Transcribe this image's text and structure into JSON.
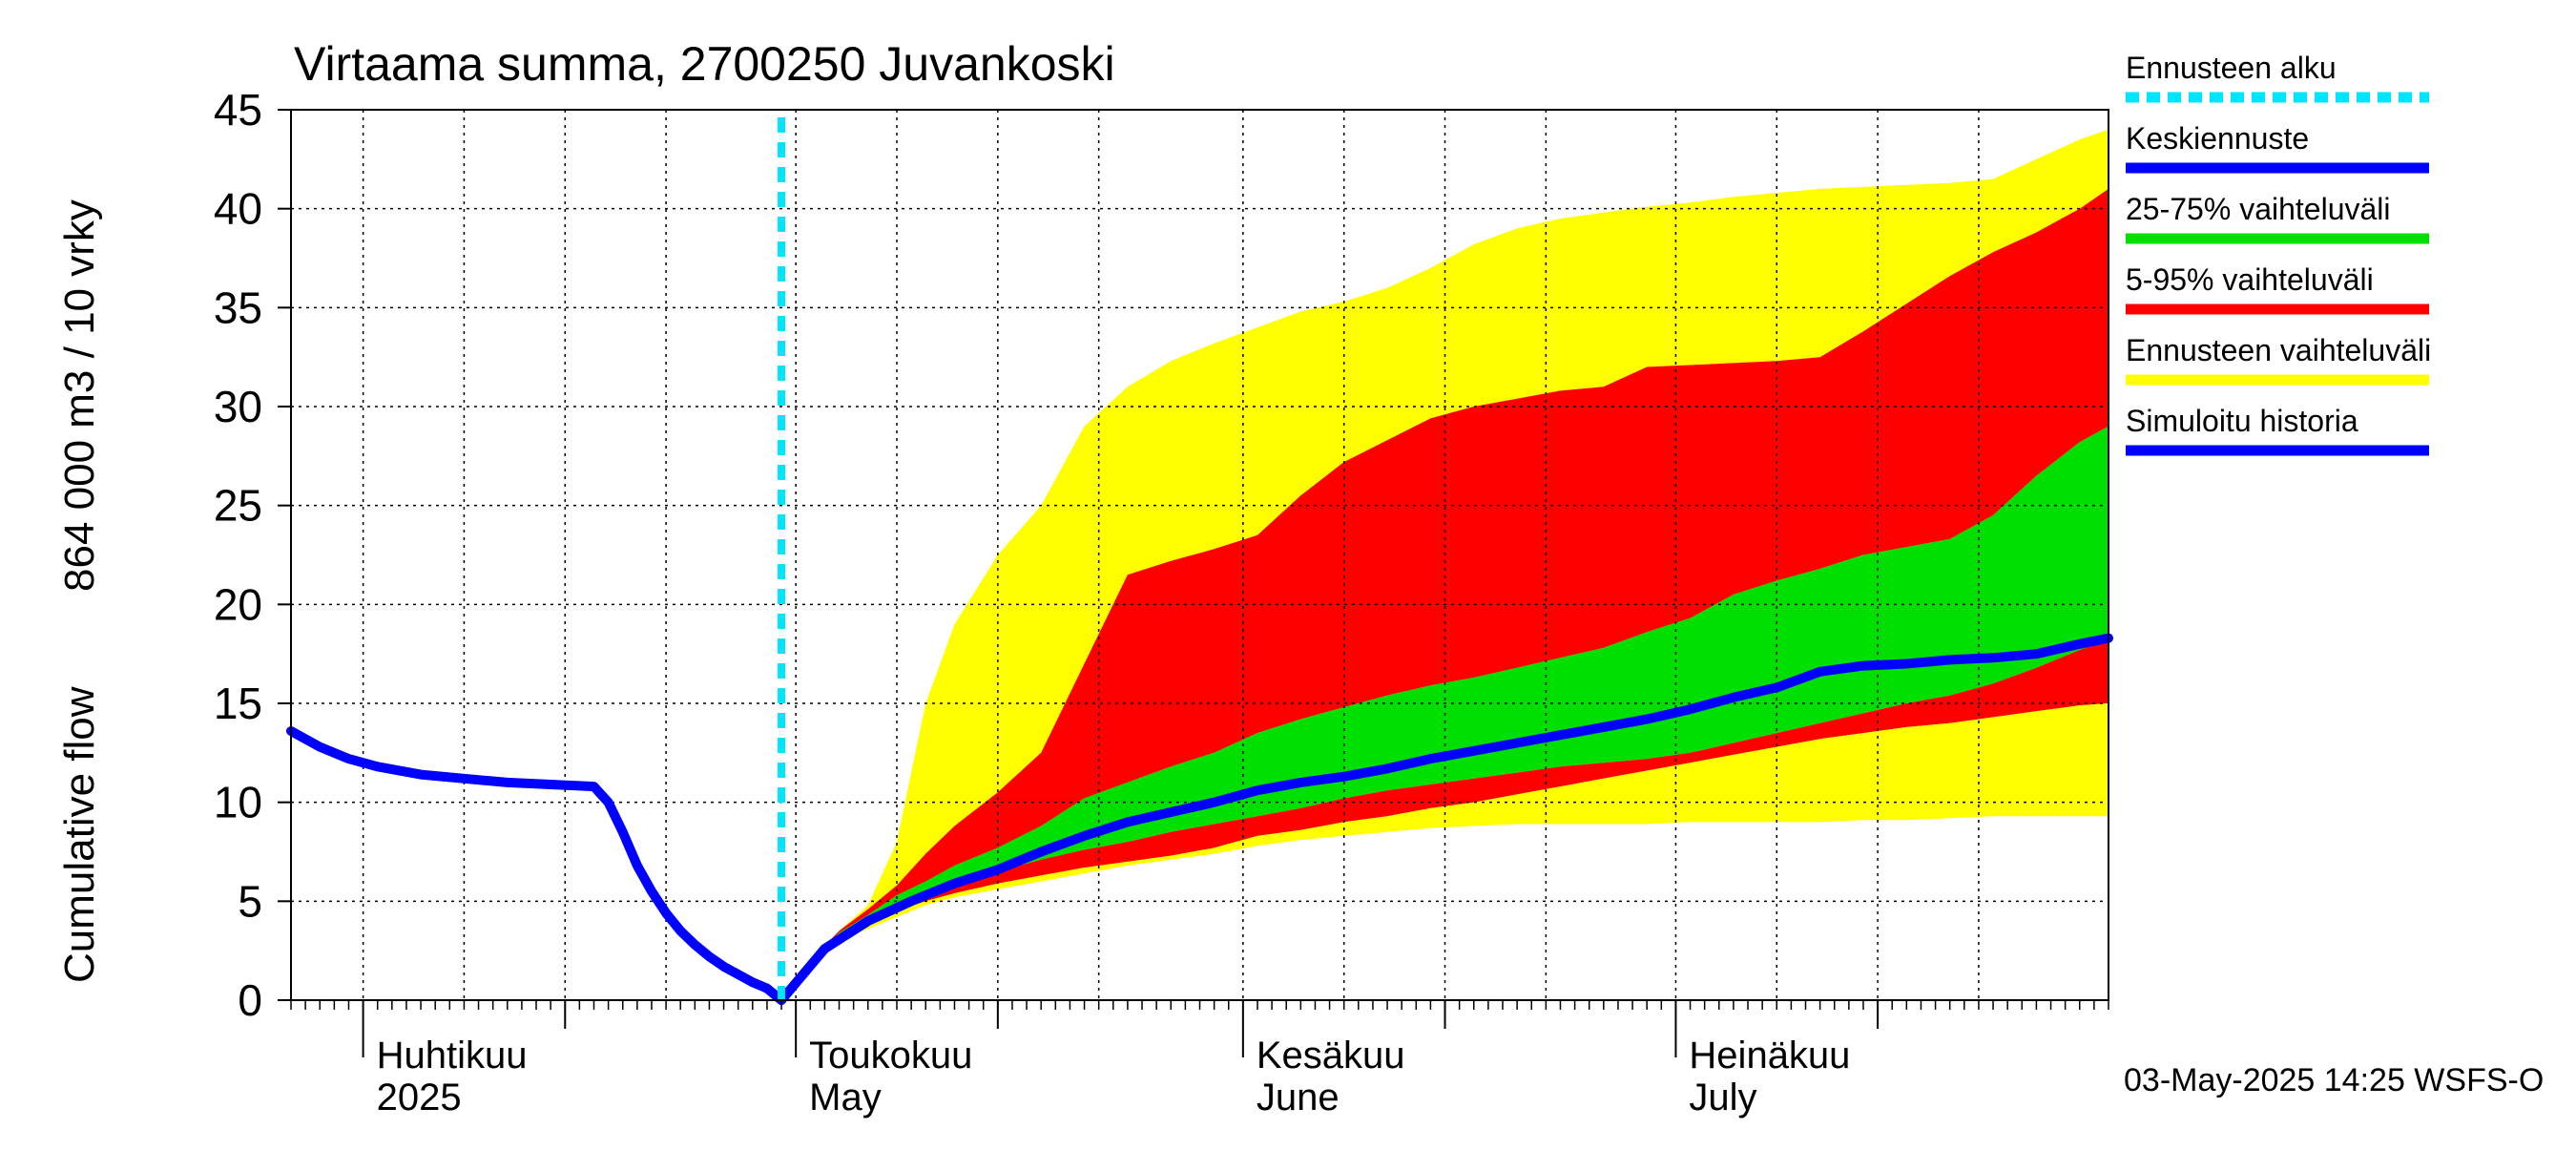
{
  "chart_data": {
    "type": "area",
    "title": "Virtaama summa, 2700250 Juvankoski",
    "ylabel_fi": "Cumulative flow",
    "ylabel_unit": "864 000 m3 / 10 vrky",
    "ylim": [
      0,
      45
    ],
    "yticks": [
      0,
      5,
      10,
      15,
      20,
      25,
      30,
      35,
      40,
      45
    ],
    "xlim": [
      "2025-03-27",
      "2025-07-31"
    ],
    "month_labels": [
      {
        "date": "2025-04-01",
        "fi": "Huhtikuu",
        "en": "2025"
      },
      {
        "date": "2025-05-01",
        "fi": "Toukokuu",
        "en": "May"
      },
      {
        "date": "2025-06-01",
        "fi": "Kesäkuu",
        "en": "June"
      },
      {
        "date": "2025-07-01",
        "fi": "Heinäkuu",
        "en": "July"
      }
    ],
    "forecast_start": "2025-04-30",
    "legend": [
      {
        "label": "Ennusteen alku",
        "color": "#00e5ff",
        "style": "dashed"
      },
      {
        "label": "Keskiennuste",
        "color": "#0000ff",
        "style": "solid"
      },
      {
        "label": "25-75% vaihteluväli",
        "color": "#00e000",
        "style": "solid"
      },
      {
        "label": "5-95% vaihteluväli",
        "color": "#ff0000",
        "style": "solid"
      },
      {
        "label": "Ennusteen vaihteluväli",
        "color": "#ffff00",
        "style": "solid"
      },
      {
        "label": "Simuloitu historia",
        "color": "#0000ff",
        "style": "solid"
      }
    ],
    "timestamp": "03-May-2025 14:25 WSFS-O",
    "bands": {
      "x": [
        "2025-04-30",
        "2025-05-02",
        "2025-05-04",
        "2025-05-06",
        "2025-05-08",
        "2025-05-10",
        "2025-05-12",
        "2025-05-15",
        "2025-05-18",
        "2025-05-21",
        "2025-05-24",
        "2025-05-27",
        "2025-05-30",
        "2025-06-02",
        "2025-06-05",
        "2025-06-08",
        "2025-06-11",
        "2025-06-14",
        "2025-06-17",
        "2025-06-20",
        "2025-06-23",
        "2025-06-26",
        "2025-06-29",
        "2025-07-02",
        "2025-07-05",
        "2025-07-08",
        "2025-07-11",
        "2025-07-14",
        "2025-07-17",
        "2025-07-20",
        "2025-07-23",
        "2025-07-26",
        "2025-07-29",
        "2025-07-31"
      ],
      "yellow_hi": [
        0.1,
        2.0,
        3.5,
        4.8,
        8.0,
        15.0,
        19.0,
        22.5,
        25.0,
        29.0,
        31.0,
        32.3,
        33.2,
        34.0,
        34.8,
        35.3,
        36.0,
        37.0,
        38.2,
        39.0,
        39.5,
        39.8,
        40.1,
        40.3,
        40.6,
        40.8,
        41.0,
        41.1,
        41.2,
        41.3,
        41.5,
        42.5,
        43.5,
        44.0
      ],
      "red_hi": [
        0.1,
        2.0,
        3.5,
        4.6,
        5.8,
        7.4,
        8.8,
        10.5,
        12.5,
        17.0,
        21.5,
        22.2,
        22.8,
        23.5,
        25.5,
        27.2,
        28.3,
        29.4,
        30.0,
        30.4,
        30.8,
        31.0,
        32.0,
        32.1,
        32.2,
        32.3,
        32.5,
        33.8,
        35.2,
        36.6,
        37.8,
        38.8,
        40.0,
        41.0
      ],
      "green_hi": [
        0.1,
        2.0,
        3.4,
        4.3,
        5.3,
        6.0,
        6.8,
        7.7,
        8.8,
        10.2,
        11.0,
        11.8,
        12.5,
        13.5,
        14.2,
        14.8,
        15.4,
        15.9,
        16.3,
        16.8,
        17.3,
        17.8,
        18.6,
        19.3,
        20.5,
        21.2,
        21.8,
        22.5,
        22.9,
        23.3,
        24.5,
        26.5,
        28.2,
        29.0
      ],
      "green_lo": [
        0.1,
        2.0,
        3.3,
        4.0,
        4.8,
        5.4,
        5.9,
        6.5,
        7.1,
        7.6,
        8.0,
        8.5,
        8.9,
        9.3,
        9.7,
        10.2,
        10.6,
        10.9,
        11.2,
        11.5,
        11.8,
        12.0,
        12.2,
        12.5,
        13.0,
        13.5,
        14.0,
        14.5,
        15.0,
        15.4,
        16.0,
        16.8,
        17.7,
        18.2
      ],
      "red_lo": [
        0.1,
        2.0,
        3.2,
        3.9,
        4.5,
        5.0,
        5.4,
        5.9,
        6.3,
        6.7,
        7.0,
        7.3,
        7.7,
        8.3,
        8.6,
        9.0,
        9.3,
        9.7,
        10.0,
        10.4,
        10.8,
        11.2,
        11.6,
        12.0,
        12.4,
        12.8,
        13.2,
        13.5,
        13.8,
        14.0,
        14.3,
        14.6,
        14.9,
        15.0
      ],
      "yellow_lo": [
        0.1,
        2.0,
        3.0,
        3.6,
        4.2,
        4.8,
        5.2,
        5.6,
        6.0,
        6.4,
        6.8,
        7.1,
        7.4,
        7.8,
        8.1,
        8.3,
        8.5,
        8.7,
        8.8,
        8.9,
        8.9,
        8.9,
        8.9,
        9.0,
        9.0,
        9.0,
        9.0,
        9.1,
        9.1,
        9.2,
        9.3,
        9.3,
        9.3,
        9.3
      ]
    },
    "series": [
      {
        "name": "Simuloitu historia",
        "x": [
          "2025-03-27",
          "2025-03-29",
          "2025-03-31",
          "2025-04-02",
          "2025-04-05",
          "2025-04-08",
          "2025-04-11",
          "2025-04-14",
          "2025-04-17",
          "2025-04-18",
          "2025-04-19",
          "2025-04-20",
          "2025-04-21",
          "2025-04-22",
          "2025-04-23",
          "2025-04-24",
          "2025-04-25",
          "2025-04-26",
          "2025-04-27",
          "2025-04-28",
          "2025-04-29",
          "2025-04-30"
        ],
        "values": [
          13.6,
          12.8,
          12.2,
          11.8,
          11.4,
          11.2,
          11.0,
          10.9,
          10.8,
          10.0,
          8.5,
          6.8,
          5.5,
          4.4,
          3.5,
          2.8,
          2.2,
          1.7,
          1.3,
          0.9,
          0.6,
          0.0
        ]
      },
      {
        "name": "Keskiennuste",
        "x": [
          "2025-04-30",
          "2025-05-03",
          "2025-05-06",
          "2025-05-09",
          "2025-05-12",
          "2025-05-15",
          "2025-05-18",
          "2025-05-21",
          "2025-05-24",
          "2025-05-27",
          "2025-05-30",
          "2025-06-02",
          "2025-06-05",
          "2025-06-08",
          "2025-06-11",
          "2025-06-14",
          "2025-06-17",
          "2025-06-20",
          "2025-06-23",
          "2025-06-26",
          "2025-06-29",
          "2025-07-02",
          "2025-07-05",
          "2025-07-08",
          "2025-07-11",
          "2025-07-14",
          "2025-07-17",
          "2025-07-20",
          "2025-07-23",
          "2025-07-26",
          "2025-07-29",
          "2025-07-31"
        ],
        "values": [
          0.0,
          2.6,
          4.0,
          5.0,
          5.9,
          6.6,
          7.5,
          8.3,
          9.0,
          9.5,
          10.0,
          10.6,
          11.0,
          11.3,
          11.7,
          12.2,
          12.6,
          13.0,
          13.4,
          13.8,
          14.2,
          14.7,
          15.3,
          15.8,
          16.6,
          16.9,
          17.0,
          17.2,
          17.3,
          17.5,
          18.0,
          18.3
        ]
      }
    ]
  }
}
